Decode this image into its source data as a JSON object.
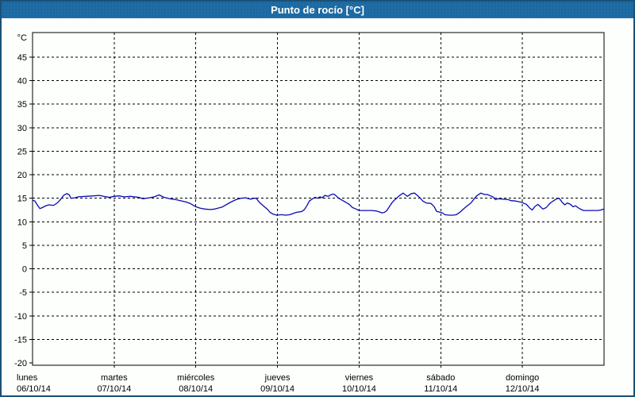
{
  "window": {
    "title": "Punto de rocío [°C]"
  },
  "colors": {
    "titlebar_bg": "#1f6da6",
    "window_border": "#1b5076",
    "plot_border": "#000000",
    "grid": "#000000",
    "series_line": "#0b0bb0",
    "background": "#fdfffd",
    "title_text": "#ffffff"
  },
  "chart_data": {
    "type": "line",
    "title": "Punto de rocío [°C]",
    "y_axis_unit_label": "°C",
    "y_ticks": [
      45,
      40,
      35,
      30,
      25,
      20,
      15,
      10,
      5,
      0,
      -5,
      -10,
      -15,
      -20
    ],
    "ylim": [
      -20.4,
      50.2
    ],
    "grid": "dashed",
    "legend_position": "none",
    "x_days": [
      {
        "name": "lunes",
        "date": "06/10/14"
      },
      {
        "name": "martes",
        "date": "07/10/14"
      },
      {
        "name": "miércoles",
        "date": "08/10/14"
      },
      {
        "name": "jueves",
        "date": "09/10/14"
      },
      {
        "name": "viernes",
        "date": "10/10/14"
      },
      {
        "name": "sábado",
        "date": "11/10/14"
      },
      {
        "name": "domingo",
        "date": "12/10/14"
      }
    ],
    "x_range_days": [
      0,
      7
    ],
    "series": [
      {
        "name": "Punto de rocío",
        "color": "#0b0bb0",
        "points": [
          [
            0.0,
            14.6
          ],
          [
            0.03,
            14.4
          ],
          [
            0.05,
            13.8
          ],
          [
            0.09,
            12.8
          ],
          [
            0.12,
            13.0
          ],
          [
            0.16,
            13.4
          ],
          [
            0.2,
            13.6
          ],
          [
            0.26,
            13.5
          ],
          [
            0.31,
            14.1
          ],
          [
            0.35,
            14.9
          ],
          [
            0.38,
            15.6
          ],
          [
            0.42,
            16.0
          ],
          [
            0.45,
            15.7
          ],
          [
            0.47,
            15.0
          ],
          [
            0.52,
            15.1
          ],
          [
            0.56,
            15.3
          ],
          [
            0.65,
            15.4
          ],
          [
            0.75,
            15.5
          ],
          [
            0.82,
            15.6
          ],
          [
            0.87,
            15.4
          ],
          [
            0.94,
            15.2
          ],
          [
            1.0,
            15.4
          ],
          [
            1.06,
            15.5
          ],
          [
            1.12,
            15.3
          ],
          [
            1.2,
            15.4
          ],
          [
            1.3,
            15.2
          ],
          [
            1.35,
            14.9
          ],
          [
            1.43,
            15.1
          ],
          [
            1.49,
            15.3
          ],
          [
            1.55,
            15.7
          ],
          [
            1.61,
            15.2
          ],
          [
            1.68,
            14.9
          ],
          [
            1.76,
            14.7
          ],
          [
            1.81,
            14.5
          ],
          [
            1.88,
            14.2
          ],
          [
            1.93,
            13.9
          ],
          [
            2.0,
            13.2
          ],
          [
            2.05,
            12.9
          ],
          [
            2.11,
            12.7
          ],
          [
            2.18,
            12.6
          ],
          [
            2.23,
            12.7
          ],
          [
            2.32,
            13.1
          ],
          [
            2.42,
            14.1
          ],
          [
            2.49,
            14.7
          ],
          [
            2.55,
            15.0
          ],
          [
            2.61,
            15.1
          ],
          [
            2.67,
            14.8
          ],
          [
            2.71,
            15.0
          ],
          [
            2.74,
            15.0
          ],
          [
            2.78,
            14.1
          ],
          [
            2.84,
            13.2
          ],
          [
            2.88,
            12.6
          ],
          [
            2.91,
            12.0
          ],
          [
            2.95,
            11.6
          ],
          [
            2.99,
            11.4
          ],
          [
            3.05,
            11.5
          ],
          [
            3.1,
            11.4
          ],
          [
            3.15,
            11.5
          ],
          [
            3.23,
            12.0
          ],
          [
            3.3,
            12.2
          ],
          [
            3.33,
            12.6
          ],
          [
            3.36,
            13.4
          ],
          [
            3.39,
            14.4
          ],
          [
            3.43,
            14.9
          ],
          [
            3.46,
            15.2
          ],
          [
            3.49,
            15.0
          ],
          [
            3.52,
            15.3
          ],
          [
            3.55,
            15.1
          ],
          [
            3.58,
            15.6
          ],
          [
            3.62,
            15.4
          ],
          [
            3.66,
            15.8
          ],
          [
            3.69,
            15.9
          ],
          [
            3.72,
            15.5
          ],
          [
            3.75,
            15.0
          ],
          [
            3.81,
            14.4
          ],
          [
            3.88,
            13.7
          ],
          [
            3.92,
            13.0
          ],
          [
            3.95,
            12.8
          ],
          [
            4.0,
            12.4
          ],
          [
            4.08,
            12.4
          ],
          [
            4.15,
            12.4
          ],
          [
            4.21,
            12.3
          ],
          [
            4.25,
            12.1
          ],
          [
            4.28,
            11.9
          ],
          [
            4.31,
            12.0
          ],
          [
            4.34,
            12.4
          ],
          [
            4.37,
            13.2
          ],
          [
            4.4,
            14.0
          ],
          [
            4.43,
            14.6
          ],
          [
            4.46,
            15.0
          ],
          [
            4.49,
            15.5
          ],
          [
            4.54,
            16.1
          ],
          [
            4.59,
            15.4
          ],
          [
            4.64,
            16.0
          ],
          [
            4.68,
            16.1
          ],
          [
            4.72,
            15.5
          ],
          [
            4.75,
            15.0
          ],
          [
            4.78,
            14.4
          ],
          [
            4.82,
            14.0
          ],
          [
            4.88,
            13.9
          ],
          [
            4.92,
            13.2
          ],
          [
            4.95,
            12.2
          ],
          [
            5.0,
            12.0
          ],
          [
            5.02,
            11.9
          ],
          [
            5.05,
            11.5
          ],
          [
            5.1,
            11.4
          ],
          [
            5.15,
            11.4
          ],
          [
            5.19,
            11.5
          ],
          [
            5.24,
            12.1
          ],
          [
            5.27,
            12.6
          ],
          [
            5.31,
            13.2
          ],
          [
            5.37,
            14.0
          ],
          [
            5.41,
            14.9
          ],
          [
            5.44,
            15.5
          ],
          [
            5.49,
            16.1
          ],
          [
            5.54,
            15.8
          ],
          [
            5.57,
            15.8
          ],
          [
            5.61,
            15.5
          ],
          [
            5.64,
            15.3
          ],
          [
            5.67,
            14.7
          ],
          [
            5.7,
            14.9
          ],
          [
            5.77,
            14.8
          ],
          [
            5.83,
            14.7
          ],
          [
            5.86,
            14.5
          ],
          [
            5.92,
            14.4
          ],
          [
            6.0,
            14.1
          ],
          [
            6.02,
            13.9
          ],
          [
            6.05,
            13.7
          ],
          [
            6.09,
            12.9
          ],
          [
            6.12,
            12.5
          ],
          [
            6.15,
            13.2
          ],
          [
            6.19,
            13.7
          ],
          [
            6.22,
            13.2
          ],
          [
            6.25,
            12.7
          ],
          [
            6.29,
            13.0
          ],
          [
            6.32,
            13.6
          ],
          [
            6.35,
            14.1
          ],
          [
            6.42,
            14.9
          ],
          [
            6.45,
            15.0
          ],
          [
            6.49,
            14.1
          ],
          [
            6.52,
            13.6
          ],
          [
            6.55,
            14.0
          ],
          [
            6.59,
            13.7
          ],
          [
            6.62,
            13.2
          ],
          [
            6.65,
            13.4
          ],
          [
            6.69,
            12.9
          ],
          [
            6.72,
            12.6
          ],
          [
            6.75,
            12.4
          ],
          [
            6.82,
            12.4
          ],
          [
            6.88,
            12.4
          ],
          [
            6.92,
            12.4
          ],
          [
            6.96,
            12.5
          ],
          [
            7.0,
            12.7
          ]
        ]
      }
    ]
  }
}
